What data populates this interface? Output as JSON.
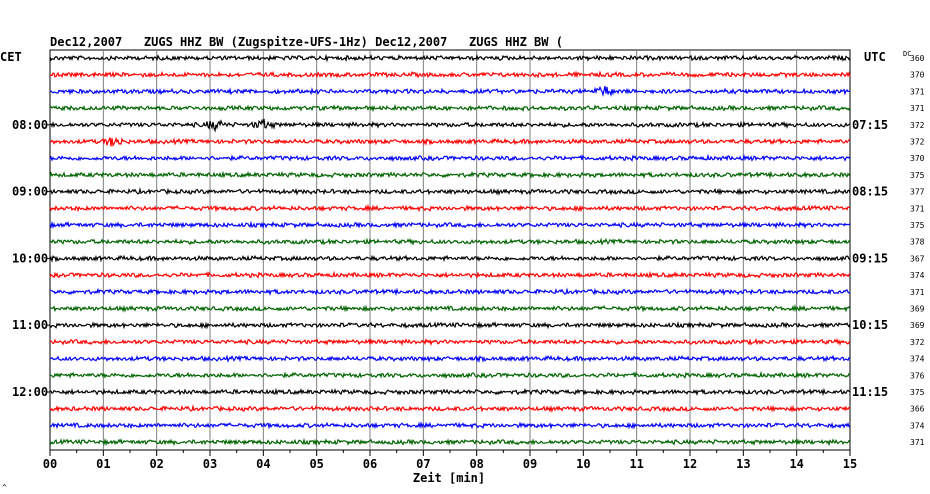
{
  "header": {
    "title": "Dec12,2007   ZUGS HHZ BW (Zugspitze-UFS-1Hz) Dec12,2007   ZUGS HHZ BW ("
  },
  "left_axis": {
    "label": "CET",
    "ticks": [
      "08:00",
      "09:00",
      "10:00",
      "11:00",
      "12:00"
    ]
  },
  "right_axis": {
    "label": "UTC",
    "ticks": [
      "07:15",
      "08:15",
      "09:15",
      "10:15",
      "11:15"
    ]
  },
  "dc_column": {
    "label": "DC",
    "values": [
      "360",
      "370",
      "371",
      "371",
      "372",
      "372",
      "370",
      "375",
      "377",
      "371",
      "375",
      "378",
      "367",
      "374",
      "371",
      "369",
      "369",
      "372",
      "374",
      "376",
      "375",
      "366",
      "374",
      "371"
    ]
  },
  "x_axis": {
    "label": "Zeit [min]",
    "ticks": [
      "00",
      "01",
      "02",
      "03",
      "04",
      "05",
      "06",
      "07",
      "08",
      "09",
      "10",
      "11",
      "12",
      "13",
      "14",
      "15"
    ]
  },
  "corner_mark": "^",
  "colors": {
    "trace_cycle": [
      "#000000",
      "#ff0000",
      "#0000ff",
      "#006400"
    ],
    "grid": "#000000"
  },
  "chart_data": {
    "type": "line",
    "title": "Dec12,2007   ZUGS HHZ BW (Zugspitze-UFS-1Hz) Dec12,2007   ZUGS HHZ BW (",
    "xlabel": "Zeit [min]",
    "ylabel": "",
    "xlim": [
      0,
      15
    ],
    "trace_count": 24,
    "minutes_per_trace": 15,
    "color_cycle": [
      "black",
      "red",
      "blue",
      "green"
    ],
    "events": [
      {
        "trace_index": 2,
        "minute": 10.4
      },
      {
        "trace_index": 4,
        "minute": 3.1
      },
      {
        "trace_index": 4,
        "minute": 4.0
      },
      {
        "trace_index": 5,
        "minute": 1.2
      }
    ],
    "grid": true
  }
}
